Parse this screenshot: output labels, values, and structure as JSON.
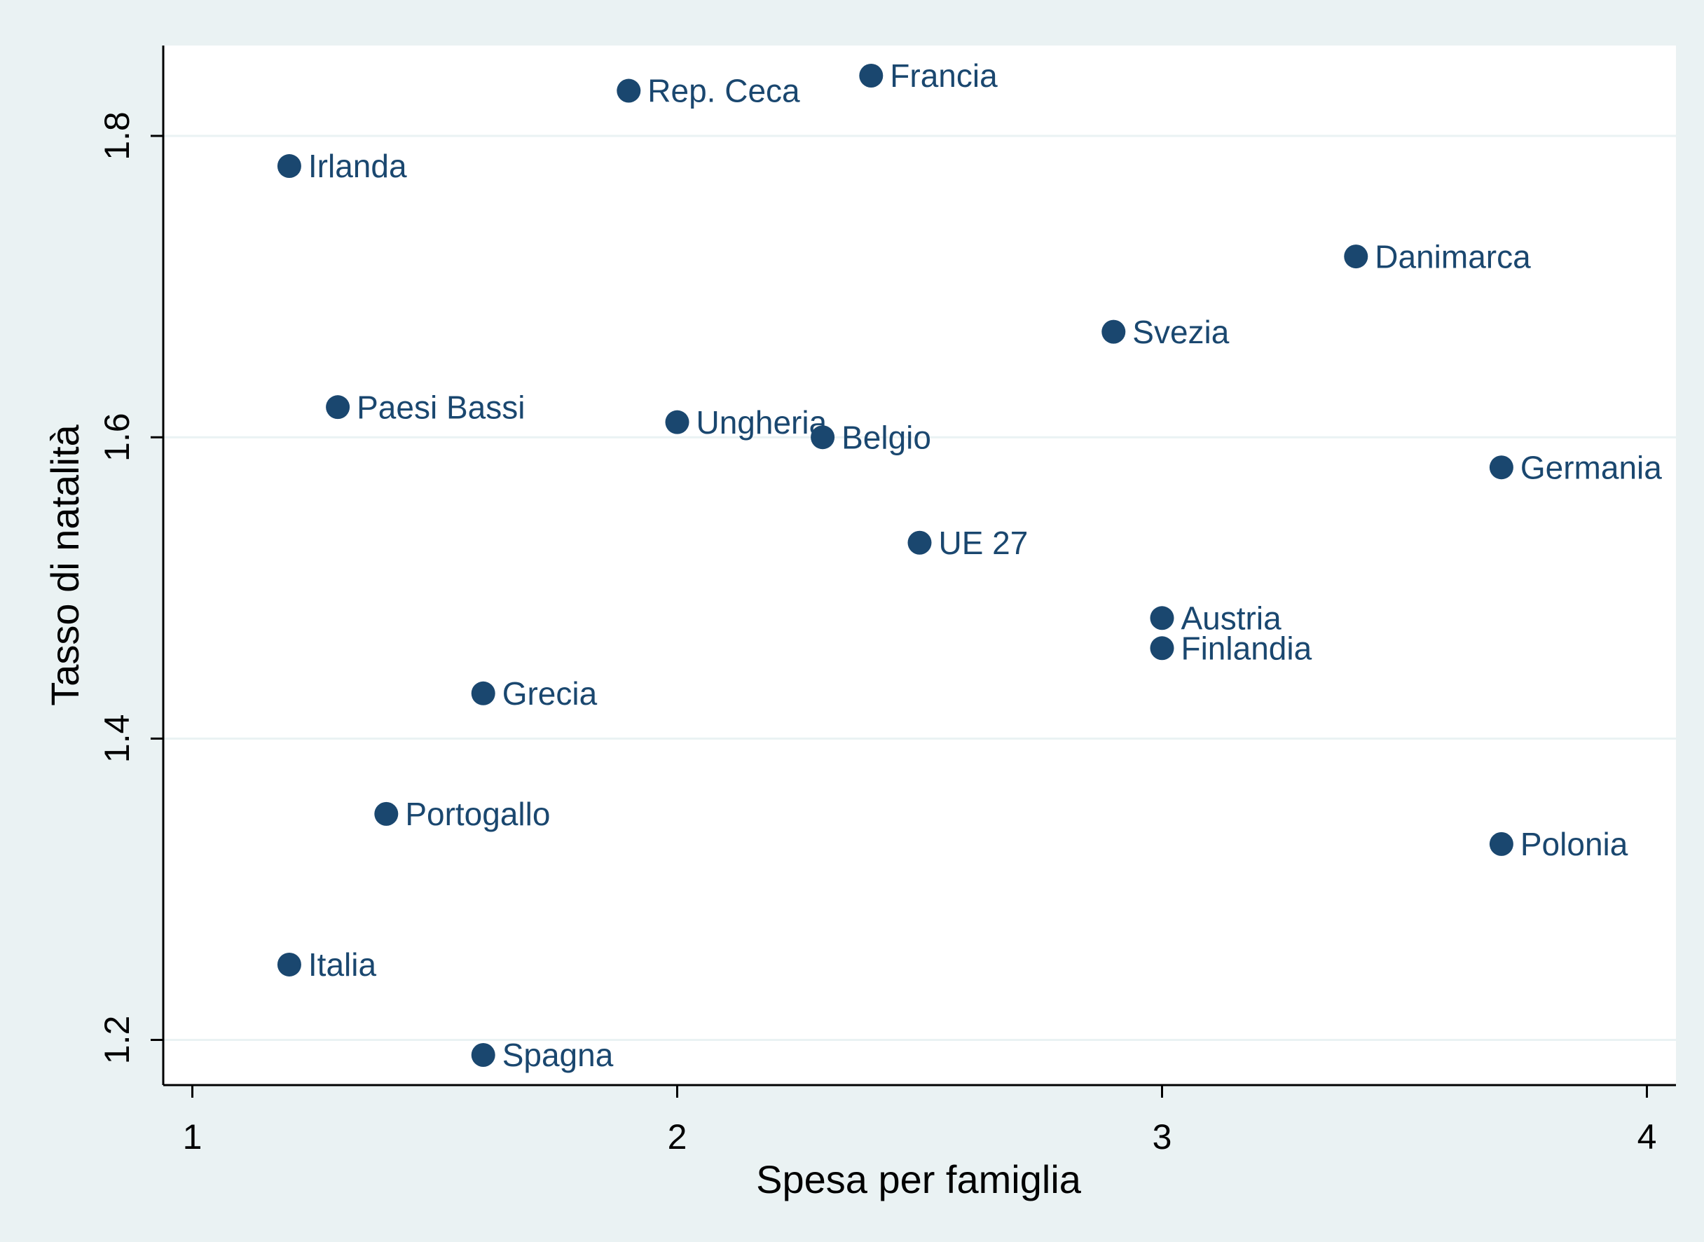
{
  "chart_data": {
    "type": "scatter",
    "xlabel": "Spesa per famiglia",
    "ylabel": "Tasso di natalità",
    "point_labels": [
      "Rep. Ceca",
      "Francia",
      "Irlanda",
      "Danimarca",
      "Svezia",
      "Paesi Bassi",
      "Ungheria",
      "Belgio",
      "Germania",
      "UE 27",
      "Austria",
      "Finlandia",
      "Grecia",
      "Portogallo",
      "Polonia",
      "Italia",
      "Spagna"
    ],
    "x": [
      1.9,
      2.4,
      1.2,
      3.4,
      2.9,
      1.3,
      2.0,
      2.3,
      3.7,
      2.5,
      3.0,
      3.0,
      1.6,
      1.4,
      3.7,
      1.2,
      1.6
    ],
    "values": [
      1.83,
      1.84,
      1.78,
      1.72,
      1.67,
      1.62,
      1.61,
      1.6,
      1.58,
      1.53,
      1.48,
      1.46,
      1.43,
      1.35,
      1.33,
      1.25,
      1.19
    ],
    "color": "#1a476f",
    "xlim": [
      0.94,
      4.06
    ],
    "xticks": [
      1,
      2,
      3,
      4
    ],
    "ylim": [
      1.17,
      1.86
    ],
    "yticks": [
      1.2,
      1.4,
      1.6,
      1.8
    ],
    "grid": true
  }
}
